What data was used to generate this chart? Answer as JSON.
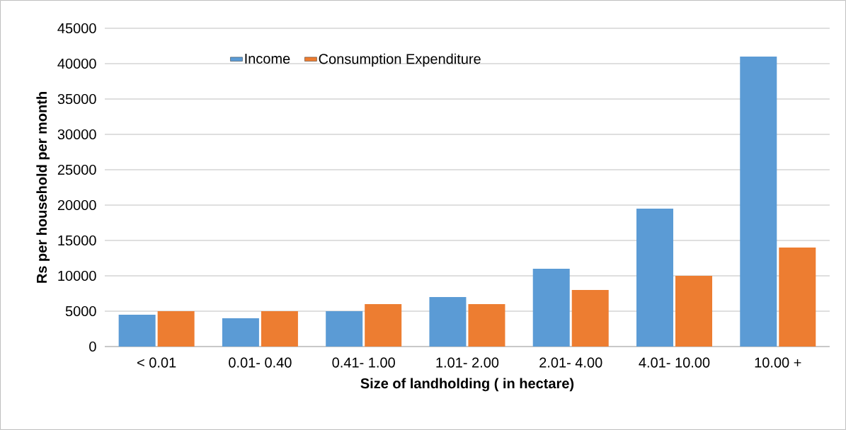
{
  "chart_data": {
    "type": "bar",
    "xlabel": "Size of landholding ( in hectare)",
    "ylabel": "Rs per household per month",
    "categories": [
      "< 0.01",
      "0.01- 0.40",
      "0.41- 1.00",
      "1.01- 2.00",
      "2.01- 4.00",
      "4.01- 10.00",
      "10.00 +"
    ],
    "series": [
      {
        "name": "Income",
        "color": "#5b9bd5",
        "values": [
          4500,
          4000,
          5000,
          7000,
          11000,
          19500,
          41000
        ]
      },
      {
        "name": "Consumption Expenditure",
        "color": "#ed7d31",
        "values": [
          5000,
          5000,
          6000,
          6000,
          8000,
          10000,
          14000
        ]
      }
    ],
    "ylim": [
      0,
      45000
    ],
    "yticks": [
      0,
      5000,
      10000,
      15000,
      20000,
      25000,
      30000,
      35000,
      40000,
      45000
    ],
    "grid": "y",
    "legend": "top left"
  }
}
